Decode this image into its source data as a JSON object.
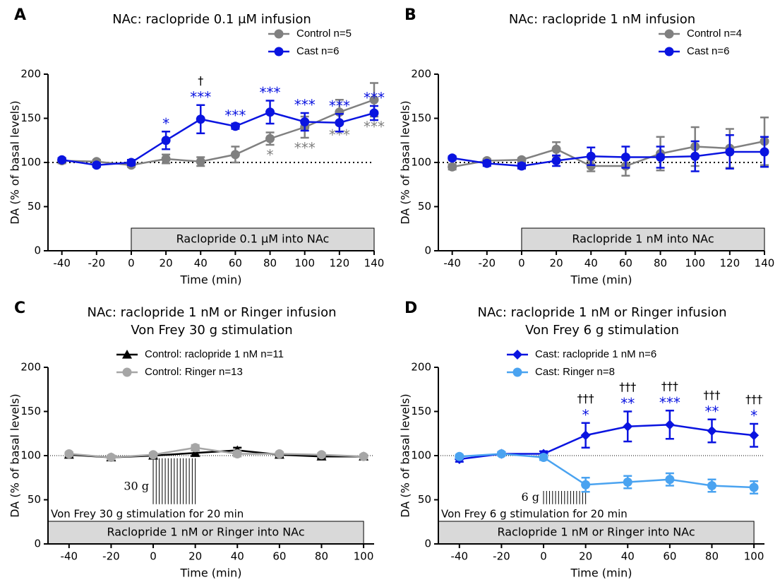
{
  "chart_data": [
    {
      "type": "line",
      "panel": "A",
      "title": "NAc: raclopride 0.1 μM infusion",
      "ylabel": "DA (% of basal levels)",
      "xlabel": "Time (min)",
      "x": [
        -40,
        -20,
        0,
        20,
        40,
        60,
        80,
        100,
        120,
        140
      ],
      "xlim": [
        -48,
        140
      ],
      "xticks": [
        -40,
        -20,
        0,
        20,
        40,
        60,
        80,
        100,
        120,
        140
      ],
      "ylim": [
        0,
        200
      ],
      "yticks": [
        0,
        50,
        100,
        150,
        200
      ],
      "baseline": 100,
      "legend": "upper right",
      "series": [
        {
          "name": "Control n=5",
          "color": "#808080",
          "marker": "circle",
          "values": [
            102,
            101,
            97,
            104,
            101,
            109,
            127,
            140,
            157,
            171
          ],
          "errors": [
            3,
            2,
            2,
            5,
            5,
            9,
            7,
            12,
            14,
            19
          ],
          "significance": [
            null,
            null,
            null,
            null,
            null,
            null,
            "*",
            "***",
            "***",
            "***"
          ],
          "significance_side": "below"
        },
        {
          "name": "Cast n=6",
          "color": "#0a14e0",
          "marker": "circle",
          "values": [
            103,
            97,
            100,
            125,
            149,
            141,
            157,
            146,
            145,
            156
          ],
          "errors": [
            2,
            2,
            3,
            10,
            16,
            3,
            13,
            10,
            10,
            8
          ],
          "significance": [
            null,
            null,
            null,
            "*",
            "***",
            "***",
            "***",
            "***",
            "***",
            "***"
          ],
          "significance_side": "above"
        }
      ],
      "daggers": [
        null,
        null,
        null,
        null,
        "†",
        null,
        null,
        null,
        null,
        null
      ],
      "dagger_series": 1,
      "treatment": {
        "label": "Raclopride 0.1 μM into NAc",
        "start": 0,
        "end": 140
      }
    },
    {
      "type": "line",
      "panel": "B",
      "title": "NAc: raclopride 1 nM infusion",
      "ylabel": "DA (% of basal levels)",
      "xlabel": "Time (min)",
      "x": [
        -40,
        -20,
        0,
        20,
        40,
        60,
        80,
        100,
        120,
        140
      ],
      "xlim": [
        -48,
        140
      ],
      "xticks": [
        -40,
        -20,
        0,
        20,
        40,
        60,
        80,
        100,
        120,
        140
      ],
      "ylim": [
        0,
        200
      ],
      "yticks": [
        0,
        50,
        100,
        150,
        200
      ],
      "baseline": 100,
      "legend": "upper right",
      "series": [
        {
          "name": "Control n=4",
          "color": "#808080",
          "marker": "circle",
          "values": [
            95,
            102,
            103,
            115,
            96,
            96,
            110,
            118,
            116,
            124
          ],
          "errors": [
            3,
            2,
            2,
            8,
            6,
            11,
            19,
            22,
            22,
            27
          ]
        },
        {
          "name": "Cast n=6",
          "color": "#0a14e0",
          "marker": "circle",
          "values": [
            105,
            99,
            96,
            102,
            107,
            106,
            106,
            107,
            112,
            112
          ],
          "errors": [
            2,
            3,
            3,
            6,
            10,
            12,
            12,
            17,
            19,
            17
          ]
        }
      ],
      "treatment": {
        "label": "Raclopride 1 nM into NAc",
        "start": 0,
        "end": 140
      }
    },
    {
      "type": "line",
      "panel": "C",
      "title": "NAc: raclopride 1 nM or Ringer infusion",
      "subtitle": "Von Frey 30 g stimulation",
      "ylabel": "DA (% of basal levels)",
      "xlabel": "Time (min)",
      "x": [
        -40,
        -20,
        0,
        20,
        40,
        60,
        80,
        100
      ],
      "xlim": [
        -50,
        105
      ],
      "xticks": [
        -40,
        -20,
        0,
        20,
        40,
        60,
        80,
        100
      ],
      "ylim": [
        0,
        200
      ],
      "yticks": [
        0,
        50,
        100,
        150,
        200
      ],
      "baseline": 100,
      "legend": "upper left",
      "series": [
        {
          "name": "Control: raclopride 1 nM n=11",
          "color": "#000000",
          "marker": "triangle",
          "values": [
            101,
            98,
            100,
            103,
            106,
            101,
            99,
            99
          ],
          "errors": [
            2,
            2,
            2,
            3,
            3,
            2,
            2,
            2
          ]
        },
        {
          "name": "Control: Ringer n=13",
          "color": "#a6a6a6",
          "marker": "circle",
          "values": [
            102,
            98,
            101,
            109,
            102,
            102,
            101,
            99
          ],
          "errors": [
            2,
            2,
            2,
            3,
            3,
            2,
            2,
            2
          ]
        }
      ],
      "treatment": {
        "label": "Raclopride 1 nM or Ringer into NAc",
        "start": -50,
        "end": 100
      },
      "stimulation": {
        "label": "Von Frey 30 g stimulation for 20 min",
        "short_label": "30 g",
        "start": 0,
        "end": 20
      }
    },
    {
      "type": "line",
      "panel": "D",
      "title": "NAc: raclopride 1 nM or Ringer infusion",
      "subtitle": "Von Frey 6 g stimulation",
      "ylabel": "DA (% of basal levels)",
      "xlabel": "Time (min)",
      "x": [
        -40,
        -20,
        0,
        20,
        40,
        60,
        80,
        100
      ],
      "xlim": [
        -50,
        105
      ],
      "xticks": [
        -40,
        -20,
        0,
        20,
        40,
        60,
        80,
        100
      ],
      "ylim": [
        0,
        200
      ],
      "yticks": [
        0,
        50,
        100,
        150,
        200
      ],
      "baseline": 100,
      "legend": "upper left",
      "series": [
        {
          "name": "Cast: raclopride 1 nM n=6",
          "color": "#0a14e0",
          "marker": "diamond",
          "values": [
            96,
            102,
            102,
            123,
            133,
            135,
            128,
            123
          ],
          "errors": [
            3,
            2,
            3,
            14,
            17,
            16,
            13,
            13
          ],
          "significance": [
            null,
            null,
            null,
            "*",
            "**",
            "***",
            "**",
            "*"
          ],
          "significance_side": "above"
        },
        {
          "name": "Cast: Ringer n=8",
          "color": "#4aa3f0",
          "marker": "circle",
          "values": [
            99,
            102,
            98,
            67,
            70,
            73,
            66,
            64
          ],
          "errors": [
            2,
            2,
            3,
            8,
            7,
            7,
            7,
            7
          ]
        }
      ],
      "daggers": [
        null,
        null,
        null,
        "†††",
        "†††",
        "†††",
        "†††",
        "†††"
      ],
      "dagger_series": 0,
      "treatment": {
        "label": "Raclopride 1 nM or Ringer into NAc",
        "start": -50,
        "end": 100
      },
      "stimulation": {
        "label": "Von Frey 6 g stimulation for 20 min",
        "short_label": "6 g",
        "start": 0,
        "end": 20
      }
    }
  ]
}
